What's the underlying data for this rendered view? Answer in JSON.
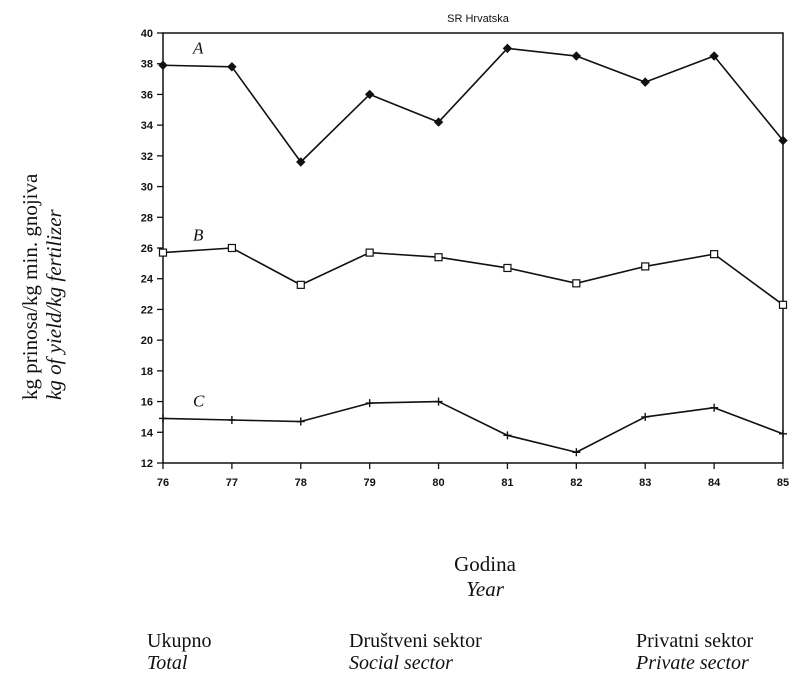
{
  "chart_data": {
    "type": "line",
    "title": "SR Hrvatska",
    "x": [
      "76",
      "77",
      "78",
      "79",
      "80",
      "81",
      "82",
      "83",
      "84",
      "85"
    ],
    "ylim": [
      12,
      40
    ],
    "yticks": [
      12,
      14,
      16,
      18,
      20,
      22,
      24,
      26,
      28,
      30,
      32,
      34,
      36,
      38,
      40
    ],
    "ylabel": "kg prinosa/kg min. gnojiva",
    "ylabel_translation": "kg of yield/kg fertilizer",
    "xlabel": "Godina",
    "xlabel_translation": "Year",
    "grid": false,
    "series": [
      {
        "name": "A",
        "marker": "diamond",
        "values": [
          37.9,
          37.8,
          31.6,
          36.0,
          34.2,
          39.0,
          38.5,
          36.8,
          38.5,
          33.0
        ]
      },
      {
        "name": "B",
        "marker": "square",
        "values": [
          25.7,
          26.0,
          23.6,
          25.7,
          25.4,
          24.7,
          23.7,
          24.8,
          25.6,
          22.3
        ]
      },
      {
        "name": "C",
        "marker": "plus",
        "values": [
          14.9,
          14.8,
          14.7,
          15.9,
          16.0,
          13.8,
          12.7,
          15.0,
          15.6,
          13.9
        ]
      }
    ],
    "legend": [
      {
        "label": "Ukupno",
        "translation": "Total"
      },
      {
        "label": "Društveni sektor",
        "translation": "Social sector"
      },
      {
        "label": "Privatni sektor",
        "translation": "Private sector"
      }
    ]
  }
}
